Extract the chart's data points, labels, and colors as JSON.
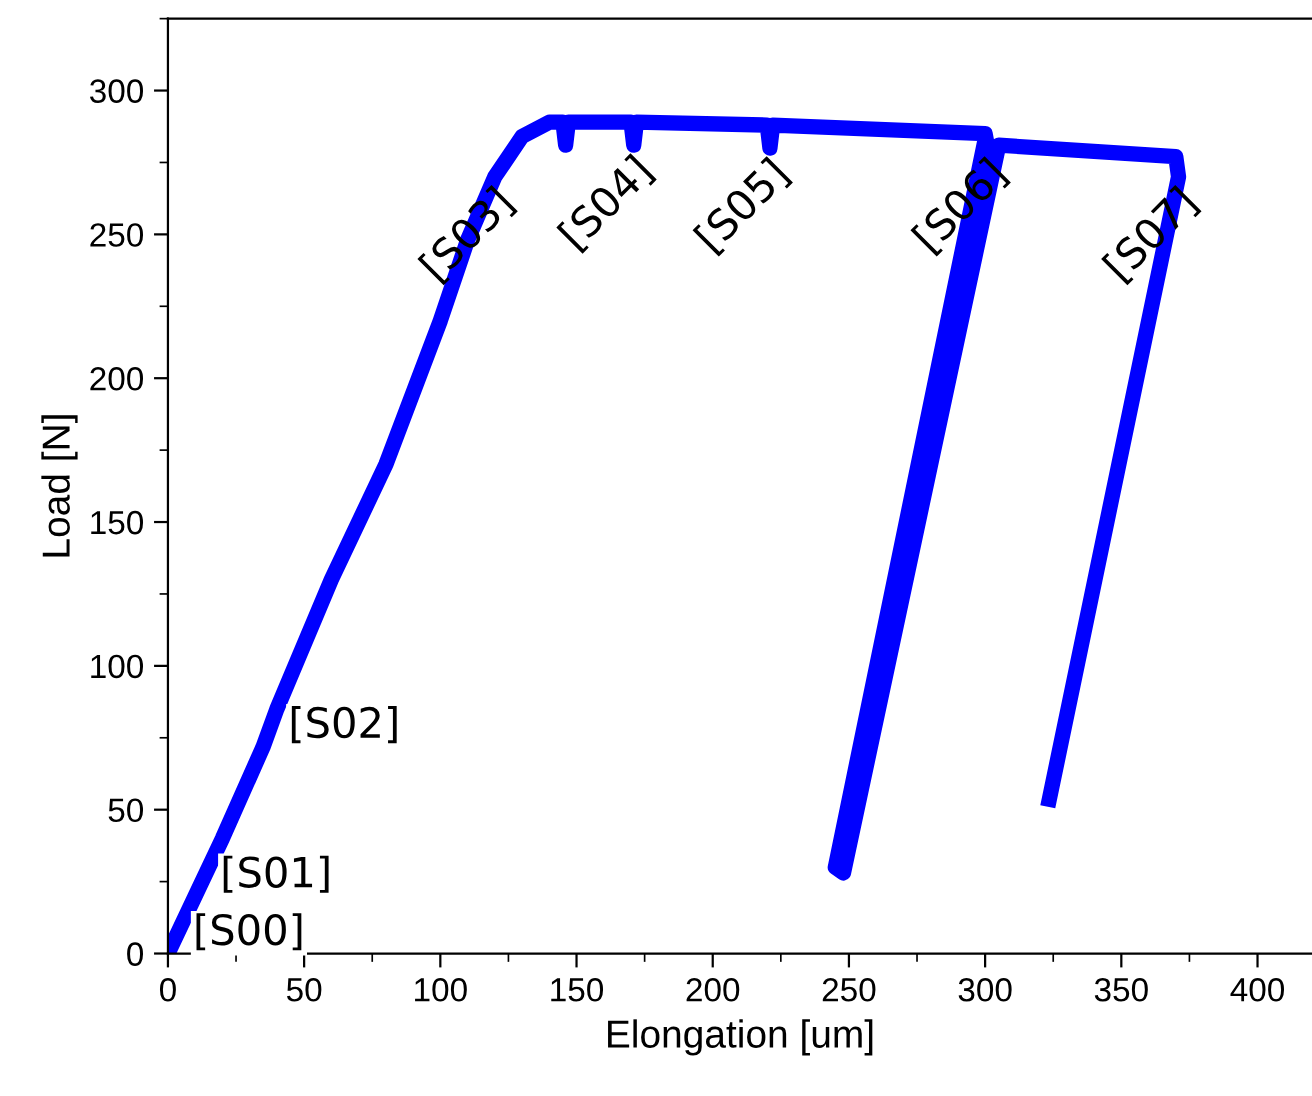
{
  "chart_data": {
    "type": "line",
    "xlabel": "Elongation [um]",
    "ylabel": "Load [N]",
    "xlim": [
      0,
      420
    ],
    "ylim": [
      0,
      325
    ],
    "xticks": [
      0,
      50,
      100,
      150,
      200,
      250,
      300,
      350,
      400
    ],
    "yticks": [
      0,
      50,
      100,
      150,
      200,
      250,
      300
    ],
    "grid": false,
    "legend": false,
    "marker": "none",
    "line_style": "solid",
    "series": [
      {
        "color": "#0000ff",
        "x": [
          0,
          10,
          20,
          35,
          40,
          60,
          80,
          100,
          110,
          120,
          130,
          140,
          145,
          146,
          147,
          170,
          171,
          172,
          220,
          221,
          222,
          300,
          301,
          300,
          245,
          248,
          305,
          370,
          371,
          323
        ],
        "values": [
          0,
          20,
          40,
          72,
          85,
          130,
          170,
          220,
          248,
          270,
          284,
          289,
          289,
          281,
          289,
          289,
          281,
          289,
          288,
          280,
          288,
          285,
          280,
          283,
          30,
          28,
          281,
          277,
          270,
          51
        ]
      }
    ],
    "annotations": [
      {
        "text": "[S00]",
        "x": 0,
        "y": 0
      },
      {
        "text": "[S01]",
        "x": 10,
        "y": 20
      },
      {
        "text": "[S02]",
        "x": 35,
        "y": 72
      },
      {
        "text": "[S03]",
        "x": 120,
        "y": 270
      },
      {
        "text": "[S04]",
        "x": 171,
        "y": 281
      },
      {
        "text": "[S05]",
        "x": 221,
        "y": 280
      },
      {
        "text": "[S06]",
        "x": 301,
        "y": 280
      },
      {
        "text": "[S07]",
        "x": 371,
        "y": 270
      }
    ]
  }
}
